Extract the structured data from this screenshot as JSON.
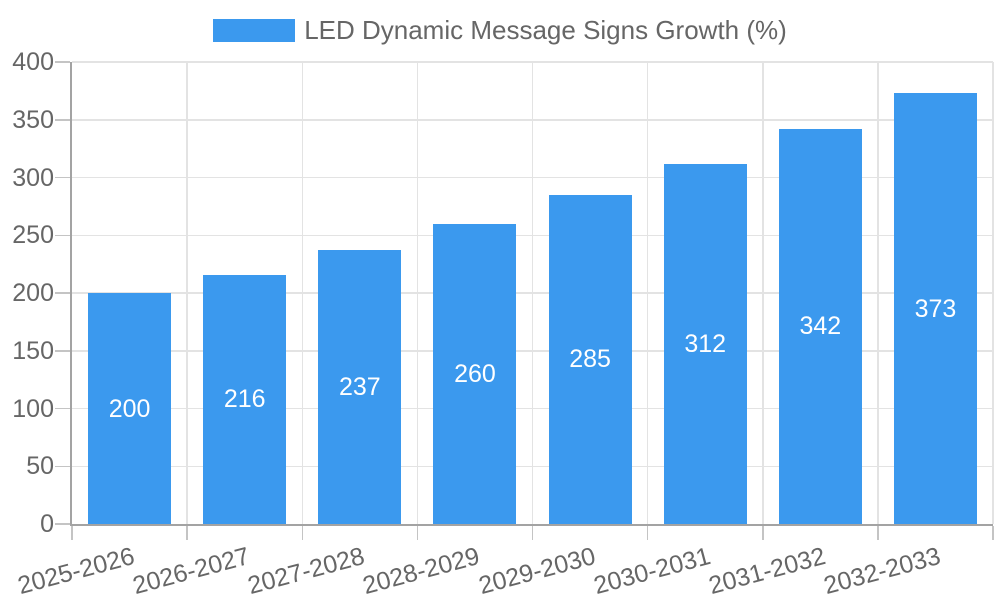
{
  "chart_data": {
    "type": "bar",
    "title": "LED Dynamic Message Signs Growth (%)",
    "legend_position": "top",
    "categories": [
      "2025-2026",
      "2026-2027",
      "2027-2028",
      "2028-2029",
      "2029-2030",
      "2030-2031",
      "2031-2032",
      "2032-2033"
    ],
    "values": [
      200,
      216,
      237,
      260,
      285,
      312,
      342,
      373
    ],
    "xlabel": "",
    "ylabel": "",
    "ylim": [
      0,
      400
    ],
    "yticks": [
      0,
      50,
      100,
      150,
      200,
      250,
      300,
      350,
      400
    ],
    "grid": true,
    "colors": {
      "bar": "#3b99ee",
      "value_label": "#ffffff",
      "axis": "#a3a3a3",
      "gridline": "#e3e3e3",
      "tick": "#c4c4c4",
      "text": "#666666",
      "background": "#ffffff"
    }
  }
}
